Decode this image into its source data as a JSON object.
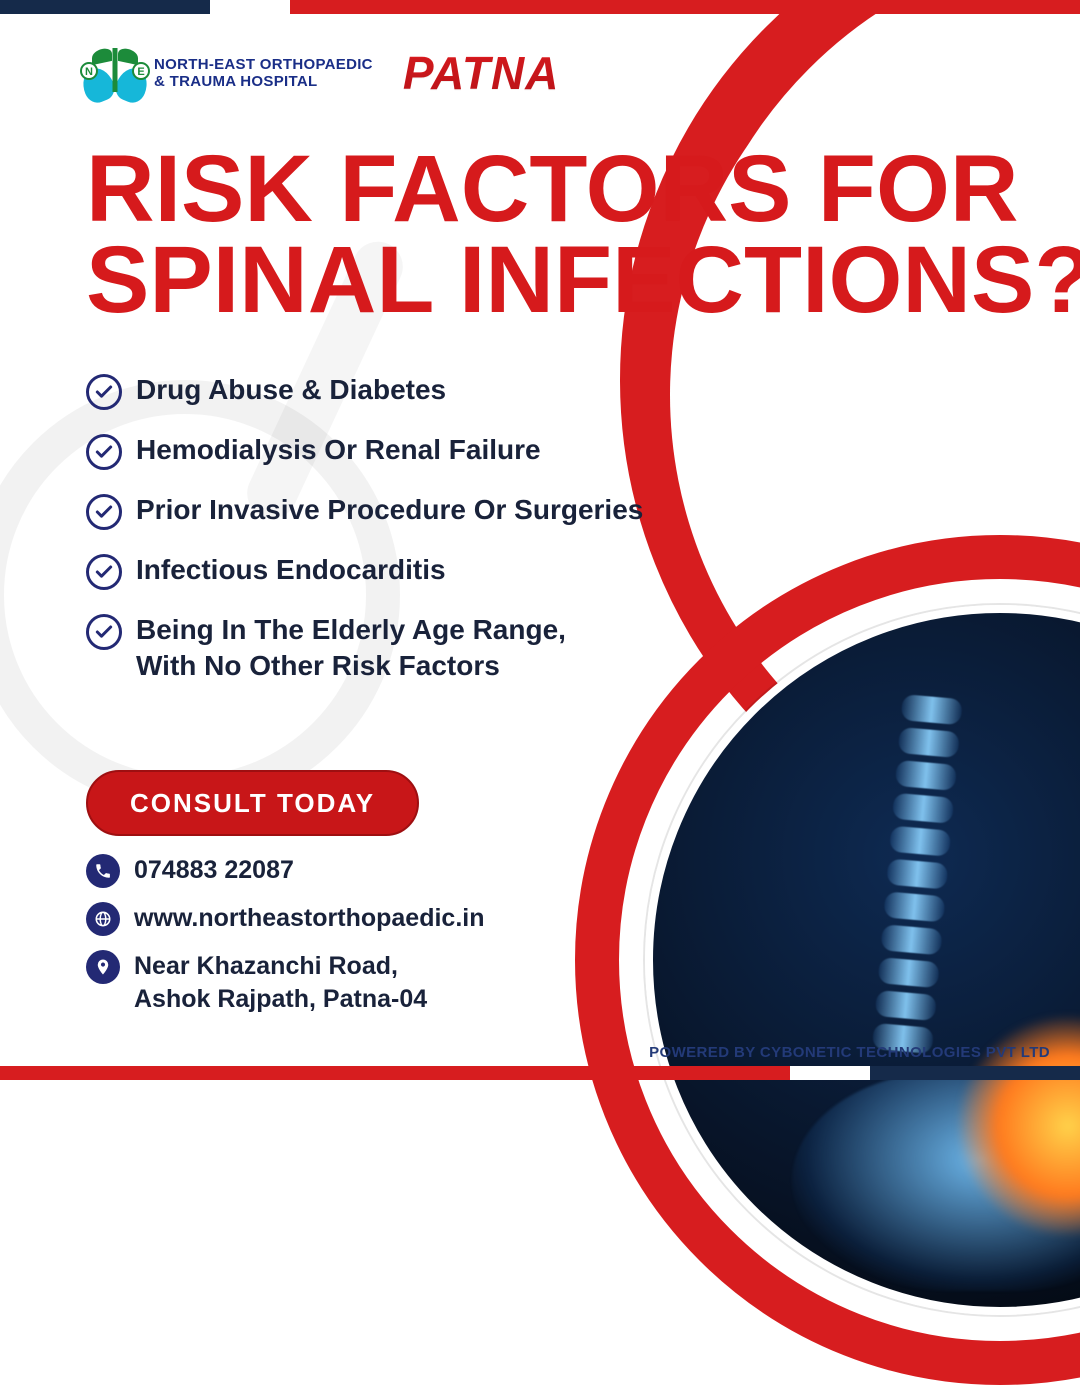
{
  "colors": {
    "red": "#d71d1f",
    "navy": "#152a4a",
    "logo_blue": "#1a2e87",
    "ink": "#19223a",
    "icon_navy": "#232974"
  },
  "header": {
    "logo_line1": "NORTH-EAST ORTHOPAEDIC",
    "logo_line2": "& TRAUMA HOSPITAL",
    "badge_n": "N",
    "badge_e": "E",
    "location": "PATNA"
  },
  "headline": {
    "line1": "RISK FACTORS FOR",
    "line2": "SPINAL INFECTIONS?",
    "fontsize": 95
  },
  "factors": [
    "Drug Abuse & Diabetes",
    "Hemodialysis Or Renal Failure",
    "Prior Invasive Procedure Or Surgeries",
    "Infectious Endocarditis",
    "Being In The Elderly Age Range,\nWith No Other Risk Factors"
  ],
  "cta": "CONSULT TODAY",
  "contact": {
    "phone": "074883 22087",
    "website": "www.northeastorthopaedic.in",
    "address": "Near Khazanchi Road,\nAshok Rajpath, Patna-04"
  },
  "credit": "POWERED BY CYBONETIC TECHNOLOGIES PVT LTD"
}
